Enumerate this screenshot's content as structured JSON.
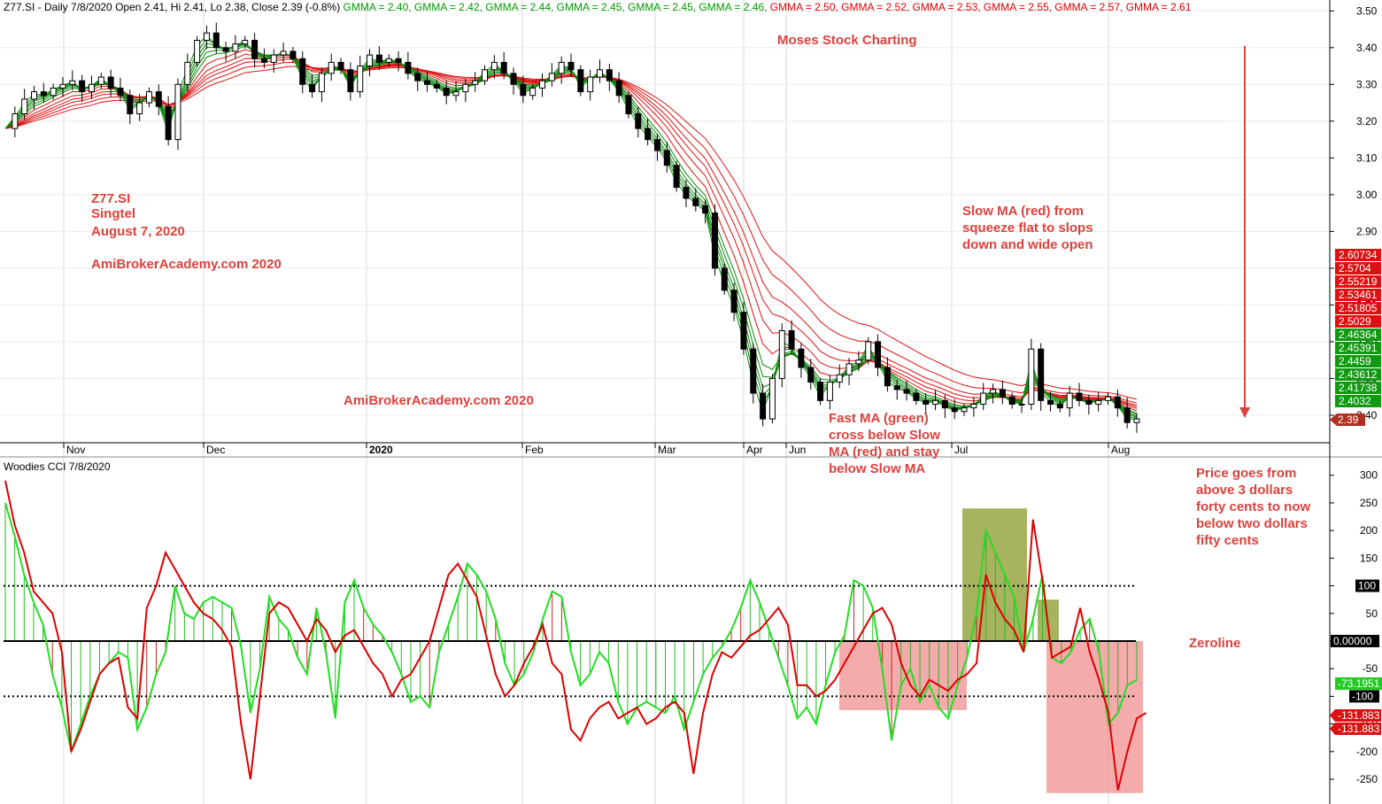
{
  "header": {
    "segments": [
      {
        "text": "Z77.SI - Daily 7/8/2020 Open 2.41, Hi 2.41, Lo 2.38, Close 2.39 (-0.8%)",
        "color": "#000000"
      },
      {
        "text": "GMMA = 2.40,",
        "color": "#009900"
      },
      {
        "text": "GMMA = 2.42,",
        "color": "#009900"
      },
      {
        "text": "GMMA = 2.44,",
        "color": "#009900"
      },
      {
        "text": "GMMA = 2.45,",
        "color": "#009900"
      },
      {
        "text": "GMMA = 2.45,",
        "color": "#009900"
      },
      {
        "text": "GMMA = 2.46,",
        "color": "#009900"
      },
      {
        "text": "GMMA = 2.50,",
        "color": "#dd0000"
      },
      {
        "text": "GMMA = 2.52,",
        "color": "#dd0000"
      },
      {
        "text": "GMMA = 2.53,",
        "color": "#dd0000"
      },
      {
        "text": "GMMA = 2.55,",
        "color": "#dd0000"
      },
      {
        "text": "GMMA = 2.57,",
        "color": "#dd0000"
      },
      {
        "text": "GMMA = 2.61",
        "color": "#dd0000"
      }
    ]
  },
  "indicator_title": "Woodies CCI  7/8/2020",
  "annotations": {
    "watermark_top": "Moses Stock Charting",
    "symbol_block": [
      "Z77.SI",
      "Singtel",
      "August 7, 2020"
    ],
    "site1": "AmiBrokerAcademy.com  2020",
    "site2": "AmiBrokerAcademy.com  2020",
    "slow_ma": [
      "Slow MA (red) from",
      "squeeze flat to slops",
      "down and wide open"
    ],
    "fast_ma": [
      "Fast MA (green)",
      "cross below Slow",
      "MA (red) and stay",
      "below Slow MA"
    ],
    "price_note": [
      "Price goes from",
      "above 3 dollars",
      "forty cents to now",
      "below two dollars",
      "fifty cents"
    ],
    "zeroline": "Zeroline"
  },
  "colors": {
    "fast_ma": "#0a8a0a",
    "slow_ma": "#dd1111",
    "annotation": "#e0403c",
    "cci_green": "#22dd22",
    "cci_red": "#dd0000",
    "box_olive": "#8a9a2a",
    "box_pink": "#ee8888"
  },
  "chart_data": [
    {
      "type": "candlestick",
      "title": "Z77.SI - Daily 7/8/2020",
      "ylim": [
        2.33,
        3.52
      ],
      "y_ticks": [
        "3.50",
        "3.40",
        "3.30",
        "3.20",
        "3.10",
        "3.00",
        "2.90",
        "2.80",
        "2.70",
        "2.60",
        "2.50",
        "2.40"
      ],
      "x_ticks": [
        "Nov",
        "Dec",
        "2020",
        "Feb",
        "Mar",
        "Apr",
        "Jun",
        "Jul",
        "Aug"
      ],
      "close_path": [
        3.18,
        3.22,
        3.26,
        3.28,
        3.27,
        3.29,
        3.3,
        3.31,
        3.28,
        3.3,
        3.32,
        3.29,
        3.27,
        3.22,
        3.25,
        3.28,
        3.24,
        3.15,
        3.3,
        3.36,
        3.42,
        3.44,
        3.4,
        3.39,
        3.41,
        3.42,
        3.37,
        3.36,
        3.38,
        3.39,
        3.37,
        3.3,
        3.28,
        3.33,
        3.36,
        3.34,
        3.28,
        3.35,
        3.38,
        3.36,
        3.37,
        3.36,
        3.33,
        3.31,
        3.3,
        3.29,
        3.27,
        3.28,
        3.3,
        3.31,
        3.34,
        3.36,
        3.33,
        3.3,
        3.27,
        3.29,
        3.31,
        3.33,
        3.36,
        3.34,
        3.28,
        3.32,
        3.34,
        3.31,
        3.27,
        3.22,
        3.18,
        3.15,
        3.12,
        3.08,
        3.02,
        2.99,
        2.97,
        2.95,
        2.8,
        2.74,
        2.68,
        2.58,
        2.46,
        2.39,
        2.5,
        2.63,
        2.58,
        2.53,
        2.49,
        2.44,
        2.49,
        2.51,
        2.54,
        2.55,
        2.6,
        2.53,
        2.48,
        2.47,
        2.46,
        2.44,
        2.43,
        2.44,
        2.42,
        2.41,
        2.42,
        2.43,
        2.46,
        2.47,
        2.45,
        2.43,
        2.43,
        2.58,
        2.44,
        2.43,
        2.42,
        2.46,
        2.44,
        2.43,
        2.44,
        2.45,
        2.42,
        2.38,
        2.39
      ],
      "gmma_last": {
        "fast": [
          2.4,
          2.42,
          2.44,
          2.45,
          2.45,
          2.46
        ],
        "slow": [
          2.5,
          2.52,
          2.53,
          2.55,
          2.57,
          2.61
        ]
      },
      "right_axis_tags": [
        {
          "value": 2.60734,
          "label": "2.60734",
          "color": "#dd1111"
        },
        {
          "value": 2.5704,
          "label": "2.5704",
          "color": "#dd1111"
        },
        {
          "value": 2.55219,
          "label": "2.55219",
          "color": "#dd1111"
        },
        {
          "value": 2.53461,
          "label": "2.53461",
          "color": "#dd1111"
        },
        {
          "value": 2.51805,
          "label": "2.51805",
          "color": "#dd1111"
        },
        {
          "value": 2.5029,
          "label": "2.5029",
          "color": "#dd1111"
        },
        {
          "value": 2.46364,
          "label": "2.46364",
          "color": "#119911"
        },
        {
          "value": 2.45391,
          "label": "2.45391",
          "color": "#119911"
        },
        {
          "value": 2.4459,
          "label": "2.4459",
          "color": "#119911"
        },
        {
          "value": 2.43612,
          "label": "2.43612",
          "color": "#119911"
        },
        {
          "value": 2.41738,
          "label": "2.41738",
          "color": "#119911"
        },
        {
          "value": 2.4032,
          "label": "2.4032",
          "color": "#119911"
        },
        {
          "value": 2.39,
          "label": "2.39",
          "color": "#b03020"
        }
      ]
    },
    {
      "type": "line",
      "title": "Woodies CCI  7/8/2020",
      "ylim": [
        -290,
        330
      ],
      "y_ticks": [
        "300",
        "250",
        "200",
        "150",
        "100",
        "50",
        "0.00000",
        "-50",
        "-100",
        "-150",
        "-200",
        "-250"
      ],
      "reference_lines": [
        100,
        0,
        -100
      ],
      "series": [
        {
          "color": "#22dd22",
          "values": [
            250,
            190,
            120,
            70,
            30,
            -60,
            -120,
            -200,
            -150,
            -100,
            -60,
            -40,
            -20,
            -30,
            -160,
            -120,
            -60,
            -20,
            100,
            50,
            40,
            70,
            80,
            70,
            60,
            -10,
            -130,
            -50,
            80,
            40,
            20,
            -30,
            -60,
            60,
            -20,
            -140,
            70,
            110,
            60,
            30,
            10,
            -20,
            -60,
            -110,
            -100,
            -120,
            -20,
            30,
            80,
            140,
            120,
            90,
            40,
            -40,
            -80,
            -60,
            -20,
            40,
            90,
            80,
            -20,
            -80,
            -60,
            -20,
            -40,
            -110,
            -150,
            -120,
            -110,
            -120,
            -130,
            -100,
            -160,
            -110,
            -60,
            -30,
            -10,
            20,
            60,
            110,
            70,
            20,
            -30,
            -80,
            -140,
            -120,
            -150,
            -80,
            -20,
            10,
            110,
            100,
            60,
            -50,
            -180,
            -80,
            -50,
            -110,
            -80,
            -120,
            -140,
            -80,
            -30,
            50,
            200,
            160,
            120,
            80,
            -20,
            40,
            120,
            -30,
            -40,
            -20,
            20,
            40,
            -20,
            -150,
            -130,
            -80,
            -70
          ]
        },
        {
          "color": "#dd0000",
          "values": [
            290,
            210,
            160,
            90,
            70,
            50,
            -20,
            -200,
            -160,
            -110,
            -60,
            -40,
            -30,
            -120,
            -140,
            60,
            100,
            160,
            130,
            100,
            70,
            50,
            40,
            20,
            -10,
            -150,
            -250,
            -100,
            50,
            70,
            60,
            30,
            0,
            40,
            20,
            -20,
            10,
            20,
            -10,
            -40,
            -60,
            -100,
            -70,
            -60,
            -30,
            0,
            60,
            120,
            140,
            110,
            80,
            10,
            -60,
            -100,
            -80,
            -40,
            -10,
            30,
            -40,
            -60,
            -160,
            -180,
            -140,
            -120,
            -110,
            -140,
            -130,
            -120,
            -150,
            -140,
            -120,
            -110,
            -130,
            -240,
            -130,
            -60,
            -20,
            -30,
            -10,
            10,
            20,
            40,
            60,
            30,
            -80,
            -80,
            -100,
            -90,
            -70,
            -40,
            -10,
            20,
            50,
            60,
            30,
            -40,
            -80,
            -100,
            -70,
            -80,
            -90,
            -70,
            -60,
            -40,
            120,
            70,
            40,
            20,
            -20,
            220,
            110,
            -30,
            -20,
            -10,
            60,
            -20,
            -70,
            -130,
            -270,
            -200,
            -140,
            -130
          ]
        }
      ],
      "right_axis_tags": [
        {
          "value": 100,
          "label": "100",
          "color": "#000000"
        },
        {
          "value": 0,
          "label": "0.00000",
          "color": "#000000"
        },
        {
          "value": -73.1951,
          "label": "-73.1951",
          "color": "#22cc22"
        },
        {
          "value": -100,
          "label": "-100",
          "color": "#000000"
        },
        {
          "value": -131.883,
          "label": "-131.883",
          "color": "#dd1111"
        },
        {
          "value": -131.883,
          "label": "-131.883",
          "color": "#dd1111"
        }
      ]
    }
  ]
}
